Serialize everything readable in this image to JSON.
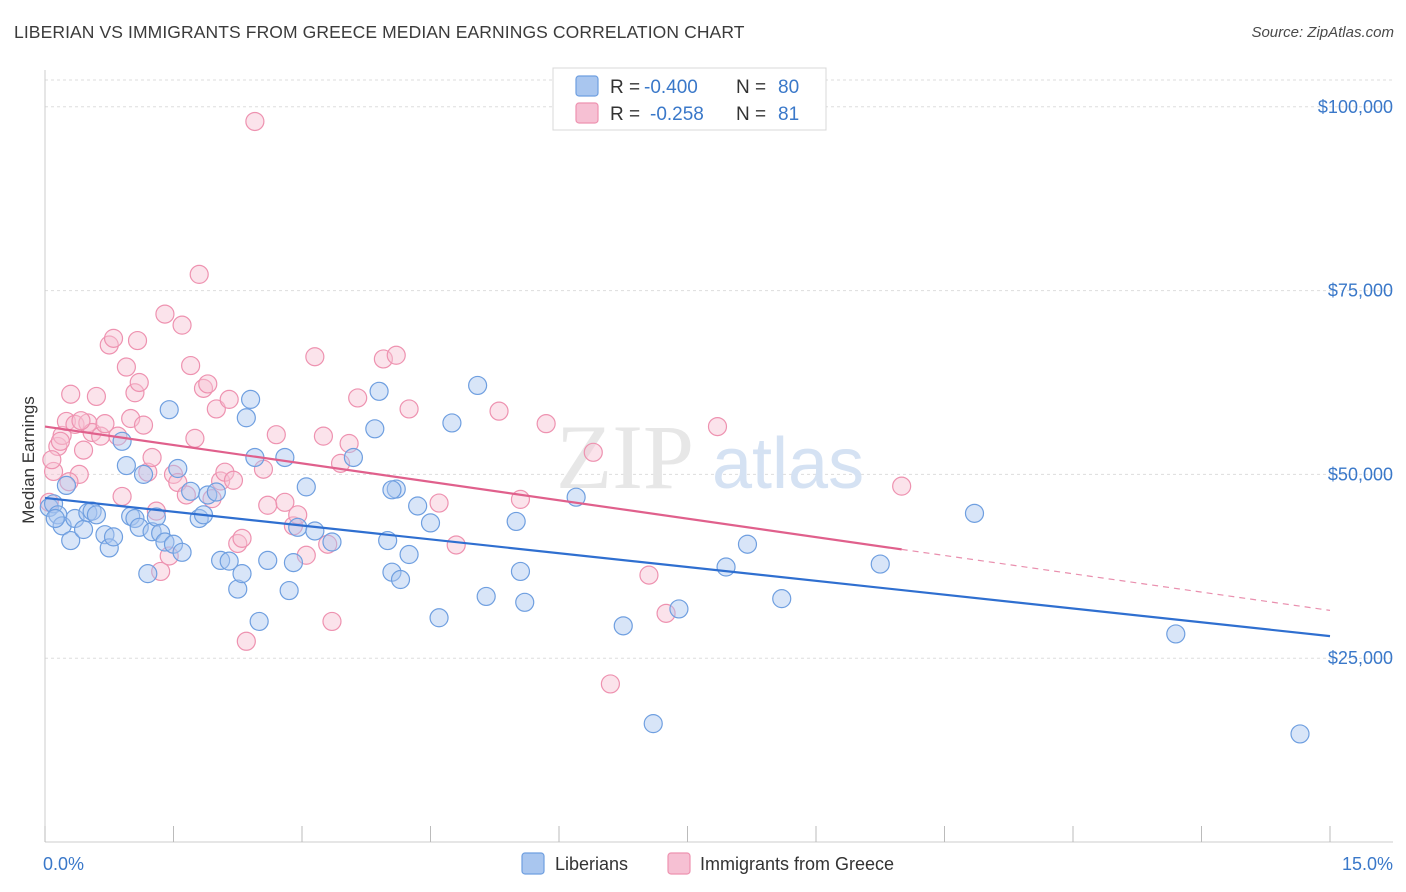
{
  "header": {
    "title": "LIBERIAN VS IMMIGRANTS FROM GREECE MEDIAN EARNINGS CORRELATION CHART",
    "source": "Source: ZipAtlas.com"
  },
  "watermark": {
    "part1": "ZIP",
    "part2": "atlas"
  },
  "colors": {
    "blue": "#6f9fe0",
    "blue_fill": "#a9c6ef",
    "blue_line": "#2f6fd0",
    "pink": "#ee92b0",
    "pink_fill": "#f6c0d3",
    "pink_line": "#e0608c",
    "tick_label": "#3a78c9"
  },
  "legend": {
    "r_label": "R =",
    "n_label": "N =",
    "series": [
      {
        "r": "-0.400",
        "n": "80"
      },
      {
        "r": "-0.258",
        "n": "81"
      }
    ]
  },
  "chart_data": {
    "type": "scatter",
    "title": "LIBERIAN VS IMMIGRANTS FROM GREECE MEDIAN EARNINGS CORRELATION CHART",
    "xlabel": "",
    "ylabel": "Median Earnings",
    "xlim": [
      0,
      15
    ],
    "ylim": [
      0,
      105000
    ],
    "x_tick_labels": [
      "0.0%",
      "15.0%"
    ],
    "y_ticks": [
      25000,
      50000,
      75000,
      100000
    ],
    "y_tick_labels": [
      "$25,000",
      "$50,000",
      "$75,000",
      "$100,000"
    ],
    "grid": true,
    "legend_placement": "top-center",
    "series": [
      {
        "name": "Liberians",
        "r": -0.4,
        "n": 80,
        "trend": {
          "x": [
            0,
            15
          ],
          "y": [
            46800,
            28000
          ]
        },
        "points": [
          [
            0.05,
            45500
          ],
          [
            0.1,
            46000
          ],
          [
            0.15,
            44500
          ],
          [
            0.2,
            43000
          ],
          [
            0.25,
            48500
          ],
          [
            0.3,
            41000
          ],
          [
            0.35,
            44000
          ],
          [
            0.45,
            42500
          ],
          [
            0.5,
            44800
          ],
          [
            0.55,
            45000
          ],
          [
            0.6,
            44500
          ],
          [
            0.7,
            41800
          ],
          [
            0.75,
            40000
          ],
          [
            0.8,
            41500
          ],
          [
            0.9,
            54500
          ],
          [
            0.95,
            51200
          ],
          [
            1.0,
            44300
          ],
          [
            1.05,
            44000
          ],
          [
            1.1,
            42800
          ],
          [
            1.15,
            50000
          ],
          [
            1.2,
            36500
          ],
          [
            1.25,
            42200
          ],
          [
            1.3,
            44200
          ],
          [
            1.35,
            42000
          ],
          [
            1.4,
            40800
          ],
          [
            1.45,
            58800
          ],
          [
            1.5,
            40500
          ],
          [
            1.55,
            50800
          ],
          [
            1.6,
            39400
          ],
          [
            1.7,
            47700
          ],
          [
            1.8,
            44000
          ],
          [
            1.85,
            44500
          ],
          [
            1.9,
            47200
          ],
          [
            2.0,
            47600
          ],
          [
            2.05,
            38300
          ],
          [
            2.15,
            38200
          ],
          [
            2.25,
            34400
          ],
          [
            2.3,
            36500
          ],
          [
            2.35,
            57700
          ],
          [
            2.4,
            60200
          ],
          [
            2.45,
            52300
          ],
          [
            2.5,
            30000
          ],
          [
            2.6,
            38300
          ],
          [
            2.8,
            52300
          ],
          [
            2.85,
            34200
          ],
          [
            2.9,
            38000
          ],
          [
            2.95,
            42800
          ],
          [
            3.05,
            48300
          ],
          [
            3.15,
            42300
          ],
          [
            3.35,
            40800
          ],
          [
            3.6,
            52300
          ],
          [
            3.85,
            56200
          ],
          [
            3.9,
            61300
          ],
          [
            4.0,
            41000
          ],
          [
            4.05,
            36700
          ],
          [
            4.1,
            48000
          ],
          [
            4.25,
            39100
          ],
          [
            4.35,
            45700
          ],
          [
            4.05,
            47900
          ],
          [
            4.15,
            35700
          ],
          [
            4.5,
            43400
          ],
          [
            4.6,
            30500
          ],
          [
            4.75,
            57000
          ],
          [
            5.05,
            62100
          ],
          [
            5.15,
            33400
          ],
          [
            5.5,
            43600
          ],
          [
            5.6,
            32600
          ],
          [
            5.55,
            36800
          ],
          [
            6.2,
            46900
          ],
          [
            6.75,
            29400
          ],
          [
            7.1,
            16100
          ],
          [
            7.4,
            31700
          ],
          [
            7.95,
            37400
          ],
          [
            8.2,
            40500
          ],
          [
            8.6,
            33100
          ],
          [
            9.75,
            37800
          ],
          [
            10.85,
            44700
          ],
          [
            13.2,
            28300
          ],
          [
            14.65,
            14700
          ],
          [
            0.12,
            44000
          ]
        ]
      },
      {
        "name": "Immigrants from Greece",
        "r": -0.258,
        "n": 81,
        "trend": {
          "x": [
            0,
            10.0
          ],
          "y": [
            56500,
            39800
          ]
        },
        "trend_dashed": {
          "x": [
            10.0,
            15
          ],
          "y": [
            39800,
            31500
          ]
        },
        "points": [
          [
            0.05,
            46200
          ],
          [
            0.1,
            50400
          ],
          [
            0.15,
            53800
          ],
          [
            0.2,
            55300
          ],
          [
            0.25,
            57200
          ],
          [
            0.3,
            60900
          ],
          [
            0.35,
            56800
          ],
          [
            0.4,
            50000
          ],
          [
            0.45,
            53300
          ],
          [
            0.5,
            57000
          ],
          [
            0.55,
            55700
          ],
          [
            0.6,
            60600
          ],
          [
            0.65,
            55200
          ],
          [
            0.7,
            56900
          ],
          [
            0.75,
            67600
          ],
          [
            0.8,
            68500
          ],
          [
            0.85,
            55200
          ],
          [
            0.9,
            47000
          ],
          [
            0.95,
            64600
          ],
          [
            1.0,
            57600
          ],
          [
            1.05,
            61100
          ],
          [
            1.1,
            62500
          ],
          [
            1.15,
            56700
          ],
          [
            1.2,
            50300
          ],
          [
            1.25,
            52300
          ],
          [
            1.3,
            45000
          ],
          [
            1.35,
            36800
          ],
          [
            1.4,
            71800
          ],
          [
            1.45,
            38900
          ],
          [
            1.5,
            50000
          ],
          [
            1.55,
            48900
          ],
          [
            1.6,
            70300
          ],
          [
            1.65,
            47200
          ],
          [
            1.7,
            64800
          ],
          [
            1.75,
            54900
          ],
          [
            1.8,
            77200
          ],
          [
            1.85,
            61700
          ],
          [
            1.9,
            62300
          ],
          [
            1.95,
            46700
          ],
          [
            2.0,
            58900
          ],
          [
            2.05,
            49100
          ],
          [
            2.1,
            50300
          ],
          [
            2.15,
            60200
          ],
          [
            2.2,
            49200
          ],
          [
            2.25,
            40600
          ],
          [
            2.3,
            41300
          ],
          [
            2.35,
            27300
          ],
          [
            2.45,
            98000
          ],
          [
            2.55,
            50700
          ],
          [
            2.7,
            55400
          ],
          [
            2.8,
            46200
          ],
          [
            2.9,
            43000
          ],
          [
            2.95,
            44500
          ],
          [
            3.05,
            39000
          ],
          [
            3.15,
            66000
          ],
          [
            3.25,
            55200
          ],
          [
            3.35,
            30000
          ],
          [
            3.45,
            51500
          ],
          [
            3.55,
            54200
          ],
          [
            3.65,
            60400
          ],
          [
            3.95,
            65700
          ],
          [
            4.1,
            66200
          ],
          [
            4.25,
            58900
          ],
          [
            4.6,
            46100
          ],
          [
            4.8,
            40400
          ],
          [
            5.3,
            58600
          ],
          [
            5.55,
            46600
          ],
          [
            5.85,
            56900
          ],
          [
            6.4,
            53000
          ],
          [
            6.6,
            21500
          ],
          [
            7.05,
            36300
          ],
          [
            7.25,
            31100
          ],
          [
            7.85,
            56500
          ],
          [
            10.0,
            48400
          ],
          [
            0.08,
            52000
          ],
          [
            0.18,
            54500
          ],
          [
            0.42,
            57300
          ],
          [
            0.28,
            49000
          ],
          [
            1.08,
            68200
          ],
          [
            3.3,
            40500
          ],
          [
            2.6,
            45800
          ]
        ]
      }
    ]
  },
  "bottom_legend": {
    "items": [
      {
        "label": "Liberians"
      },
      {
        "label": "Immigrants from Greece"
      }
    ]
  }
}
